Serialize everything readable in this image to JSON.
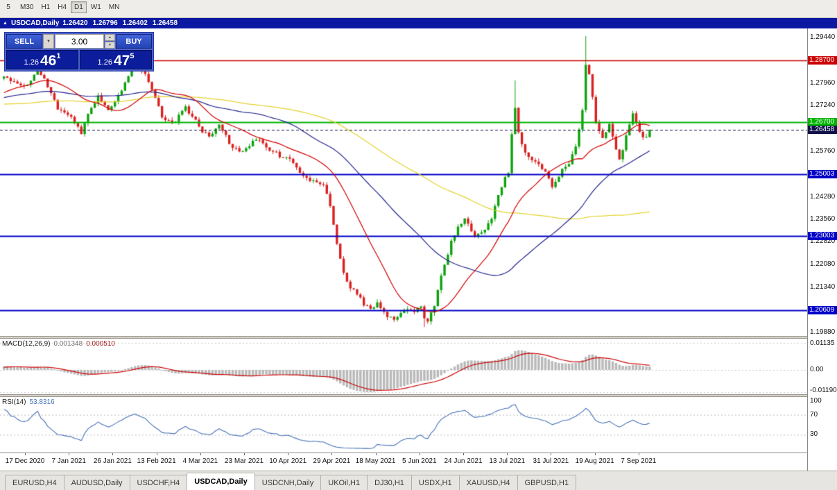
{
  "toolbar": {
    "timeframes": [
      {
        "label": "5",
        "active": false
      },
      {
        "label": "M30",
        "active": false
      },
      {
        "label": "H1",
        "active": false
      },
      {
        "label": "H4",
        "active": false
      },
      {
        "label": "D1",
        "active": true
      },
      {
        "label": "W1",
        "active": false
      },
      {
        "label": "MN",
        "active": false
      }
    ]
  },
  "chart_window": {
    "title": "USDCAD,Daily",
    "open": "1.26420",
    "high": "1.26796",
    "low": "1.26402",
    "close": "1.26458"
  },
  "trade_panel": {
    "sell_label": "SELL",
    "buy_label": "BUY",
    "volume": "3.00",
    "sell_price": {
      "base": "1.26",
      "pips": "46",
      "pipette": "1"
    },
    "buy_price": {
      "base": "1.26",
      "pips": "47",
      "pipette": "5"
    }
  },
  "price_axis": {
    "ticks": [
      "1.29440",
      "1.27960",
      "1.27240",
      "1.25760",
      "1.24280",
      "1.23560",
      "1.22820",
      "1.22080",
      "1.21340",
      "1.19880"
    ]
  },
  "levels": [
    {
      "label": "1.28700",
      "price": 1.287,
      "color": "#cc0000",
      "style": "solid",
      "width": 1.6,
      "current": false
    },
    {
      "label": "1.26700",
      "price": 1.267,
      "color": "#00b300",
      "style": "solid",
      "width": 2.2,
      "current": false
    },
    {
      "label": "1.26458",
      "price": 1.26458,
      "color": "#10104a",
      "style": "dashed",
      "width": 1,
      "current": true
    },
    {
      "label": "1.25003",
      "price": 1.25003,
      "color": "#0000c8",
      "style": "solid",
      "width": 2,
      "current": false
    },
    {
      "label": "1.23003",
      "price": 1.23003,
      "color": "#0000c8",
      "style": "solid",
      "width": 2,
      "current": false
    },
    {
      "label": "1.20609",
      "price": 1.20609,
      "color": "#0000c8",
      "style": "solid",
      "width": 2,
      "current": false
    }
  ],
  "macd": {
    "label": "MACD(12,26,9)",
    "value_main": "0.001348",
    "value_signal": "0.000510",
    "axis": [
      "0.01135",
      "0.00",
      "-0.01190"
    ]
  },
  "rsi": {
    "label": "RSI(14)",
    "value": "53.8316",
    "axis": [
      "100",
      "70",
      "30"
    ],
    "levels": [
      70,
      30
    ]
  },
  "time_axis": {
    "labels": [
      "17 Dec 2020",
      "7 Jan 2021",
      "26 Jan 2021",
      "13 Feb 2021",
      "4 Mar 2021",
      "23 Mar 2021",
      "10 Apr 2021",
      "29 Apr 2021",
      "18 May 2021",
      "5 Jun 2021",
      "24 Jun 2021",
      "13 Jul 2021",
      "31 Jul 2021",
      "19 Aug 2021",
      "7 Sep 2021"
    ]
  },
  "tabs": [
    {
      "label": "EURUSD,H4",
      "active": false
    },
    {
      "label": "AUDUSD,Daily",
      "active": false
    },
    {
      "label": "USDCHF,H4",
      "active": false
    },
    {
      "label": "USDCAD,Daily",
      "active": true
    },
    {
      "label": "USDCNH,Daily",
      "active": false
    },
    {
      "label": "UKOil,H1",
      "active": false
    },
    {
      "label": "DJ30,H1",
      "active": false
    },
    {
      "label": "USDX,H1",
      "active": false
    },
    {
      "label": "XAUUSD,H4",
      "active": false
    },
    {
      "label": "GBPUSD,H1",
      "active": false
    }
  ],
  "chart_data": {
    "type": "candlestick",
    "symbol": "USDCAD",
    "timeframe": "Daily",
    "last_close": 1.26458,
    "visible_range": {
      "price_min": 1.1977,
      "price_max": 1.2974
    },
    "candles_visible": 193,
    "preroll": 110,
    "seed": 11,
    "volatility": 0.0013,
    "candle_up_color": "#0ca30c",
    "candle_down_color": "#dc1f1f",
    "path_anchors": [
      [
        -9,
        1.272
      ],
      [
        -8,
        1.2762
      ],
      [
        -7,
        1.2688
      ],
      [
        -6,
        1.2742
      ],
      [
        -5,
        1.2651
      ],
      [
        -4,
        1.2715
      ],
      [
        -3,
        1.278
      ],
      [
        -2,
        1.2705
      ],
      [
        -1.2,
        1.277
      ],
      [
        -0.5,
        1.282
      ],
      [
        0,
        1.2782
      ],
      [
        0.25,
        1.2845
      ],
      [
        0.5,
        1.2788
      ],
      [
        0.7,
        1.2718
      ],
      [
        1,
        1.2692
      ],
      [
        1.25,
        1.2634
      ],
      [
        1.45,
        1.2708
      ],
      [
        1.65,
        1.2758
      ],
      [
        1.85,
        1.2712
      ],
      [
        2.05,
        1.2742
      ],
      [
        2.3,
        1.2808
      ],
      [
        2.5,
        1.2862
      ],
      [
        2.75,
        1.2818
      ],
      [
        2.95,
        1.2742
      ],
      [
        3.1,
        1.2692
      ],
      [
        3.35,
        1.2662
      ],
      [
        3.6,
        1.2722
      ],
      [
        3.8,
        1.2688
      ],
      [
        4,
        1.2642
      ],
      [
        4.2,
        1.2622
      ],
      [
        4.4,
        1.2668
      ],
      [
        4.65,
        1.2602
      ],
      [
        4.85,
        1.2572
      ],
      [
        5.05,
        1.2592
      ],
      [
        5.3,
        1.2618
      ],
      [
        5.55,
        1.2582
      ],
      [
        5.8,
        1.256
      ],
      [
        6.05,
        1.2552
      ],
      [
        6.3,
        1.2498
      ],
      [
        6.55,
        1.2478
      ],
      [
        6.8,
        1.2468
      ],
      [
        6.95,
        1.2388
      ],
      [
        7.1,
        1.2268
      ],
      [
        7.3,
        1.2152
      ],
      [
        7.5,
        1.2122
      ],
      [
        7.7,
        1.2082
      ],
      [
        7.85,
        1.2058
      ],
      [
        8,
        1.2085
      ],
      [
        8.2,
        1.2042
      ],
      [
        8.45,
        1.2032
      ],
      [
        8.65,
        1.2068
      ],
      [
        8.85,
        1.2048
      ],
      [
        9,
        1.2075
      ],
      [
        9.12,
        1.2015
      ],
      [
        9.3,
        1.2068
      ],
      [
        9.5,
        1.2188
      ],
      [
        9.7,
        1.2282
      ],
      [
        9.9,
        1.2338
      ],
      [
        10.05,
        1.2362
      ],
      [
        10.2,
        1.2292
      ],
      [
        10.4,
        1.2312
      ],
      [
        10.6,
        1.2352
      ],
      [
        10.8,
        1.2445
      ],
      [
        10.95,
        1.2498
      ],
      [
        11.05,
        1.2522
      ],
      [
        11.12,
        1.2762
      ],
      [
        11.25,
        1.2625
      ],
      [
        11.4,
        1.2572
      ],
      [
        11.6,
        1.2542
      ],
      [
        11.8,
        1.2518
      ],
      [
        12,
        1.2465
      ],
      [
        12.2,
        1.2508
      ],
      [
        12.4,
        1.2542
      ],
      [
        12.55,
        1.2602
      ],
      [
        12.68,
        1.2688
      ],
      [
        12.78,
        1.2868
      ],
      [
        12.88,
        1.2795
      ],
      [
        13,
        1.2668
      ],
      [
        13.15,
        1.2618
      ],
      [
        13.3,
        1.2665
      ],
      [
        13.42,
        1.2602
      ],
      [
        13.55,
        1.2538
      ],
      [
        13.7,
        1.2628
      ],
      [
        13.85,
        1.2695
      ],
      [
        13.95,
        1.2655
      ],
      [
        14.1,
        1.2612
      ],
      [
        14.23,
        1.26458
      ]
    ],
    "wick_events": [
      {
        "u": 12.78,
        "high": 1.2949
      },
      {
        "u": 11.12,
        "high": 1.2806
      },
      {
        "u": 9.12,
        "low": 1.2006
      },
      {
        "u": 0.25,
        "high": 1.2852
      }
    ],
    "moving_averages": [
      {
        "period": 20,
        "color": "#d40000"
      },
      {
        "period": 50,
        "color": "#22228f"
      },
      {
        "period": 100,
        "color": "#e5d22e"
      }
    ],
    "macd_params": {
      "fast": 12,
      "slow": 26,
      "signal": 9,
      "histogram_color": "#b9b9b9",
      "signal_color": "#cc0000"
    },
    "rsi_params": {
      "period": 14,
      "color": "#4571b8"
    }
  }
}
